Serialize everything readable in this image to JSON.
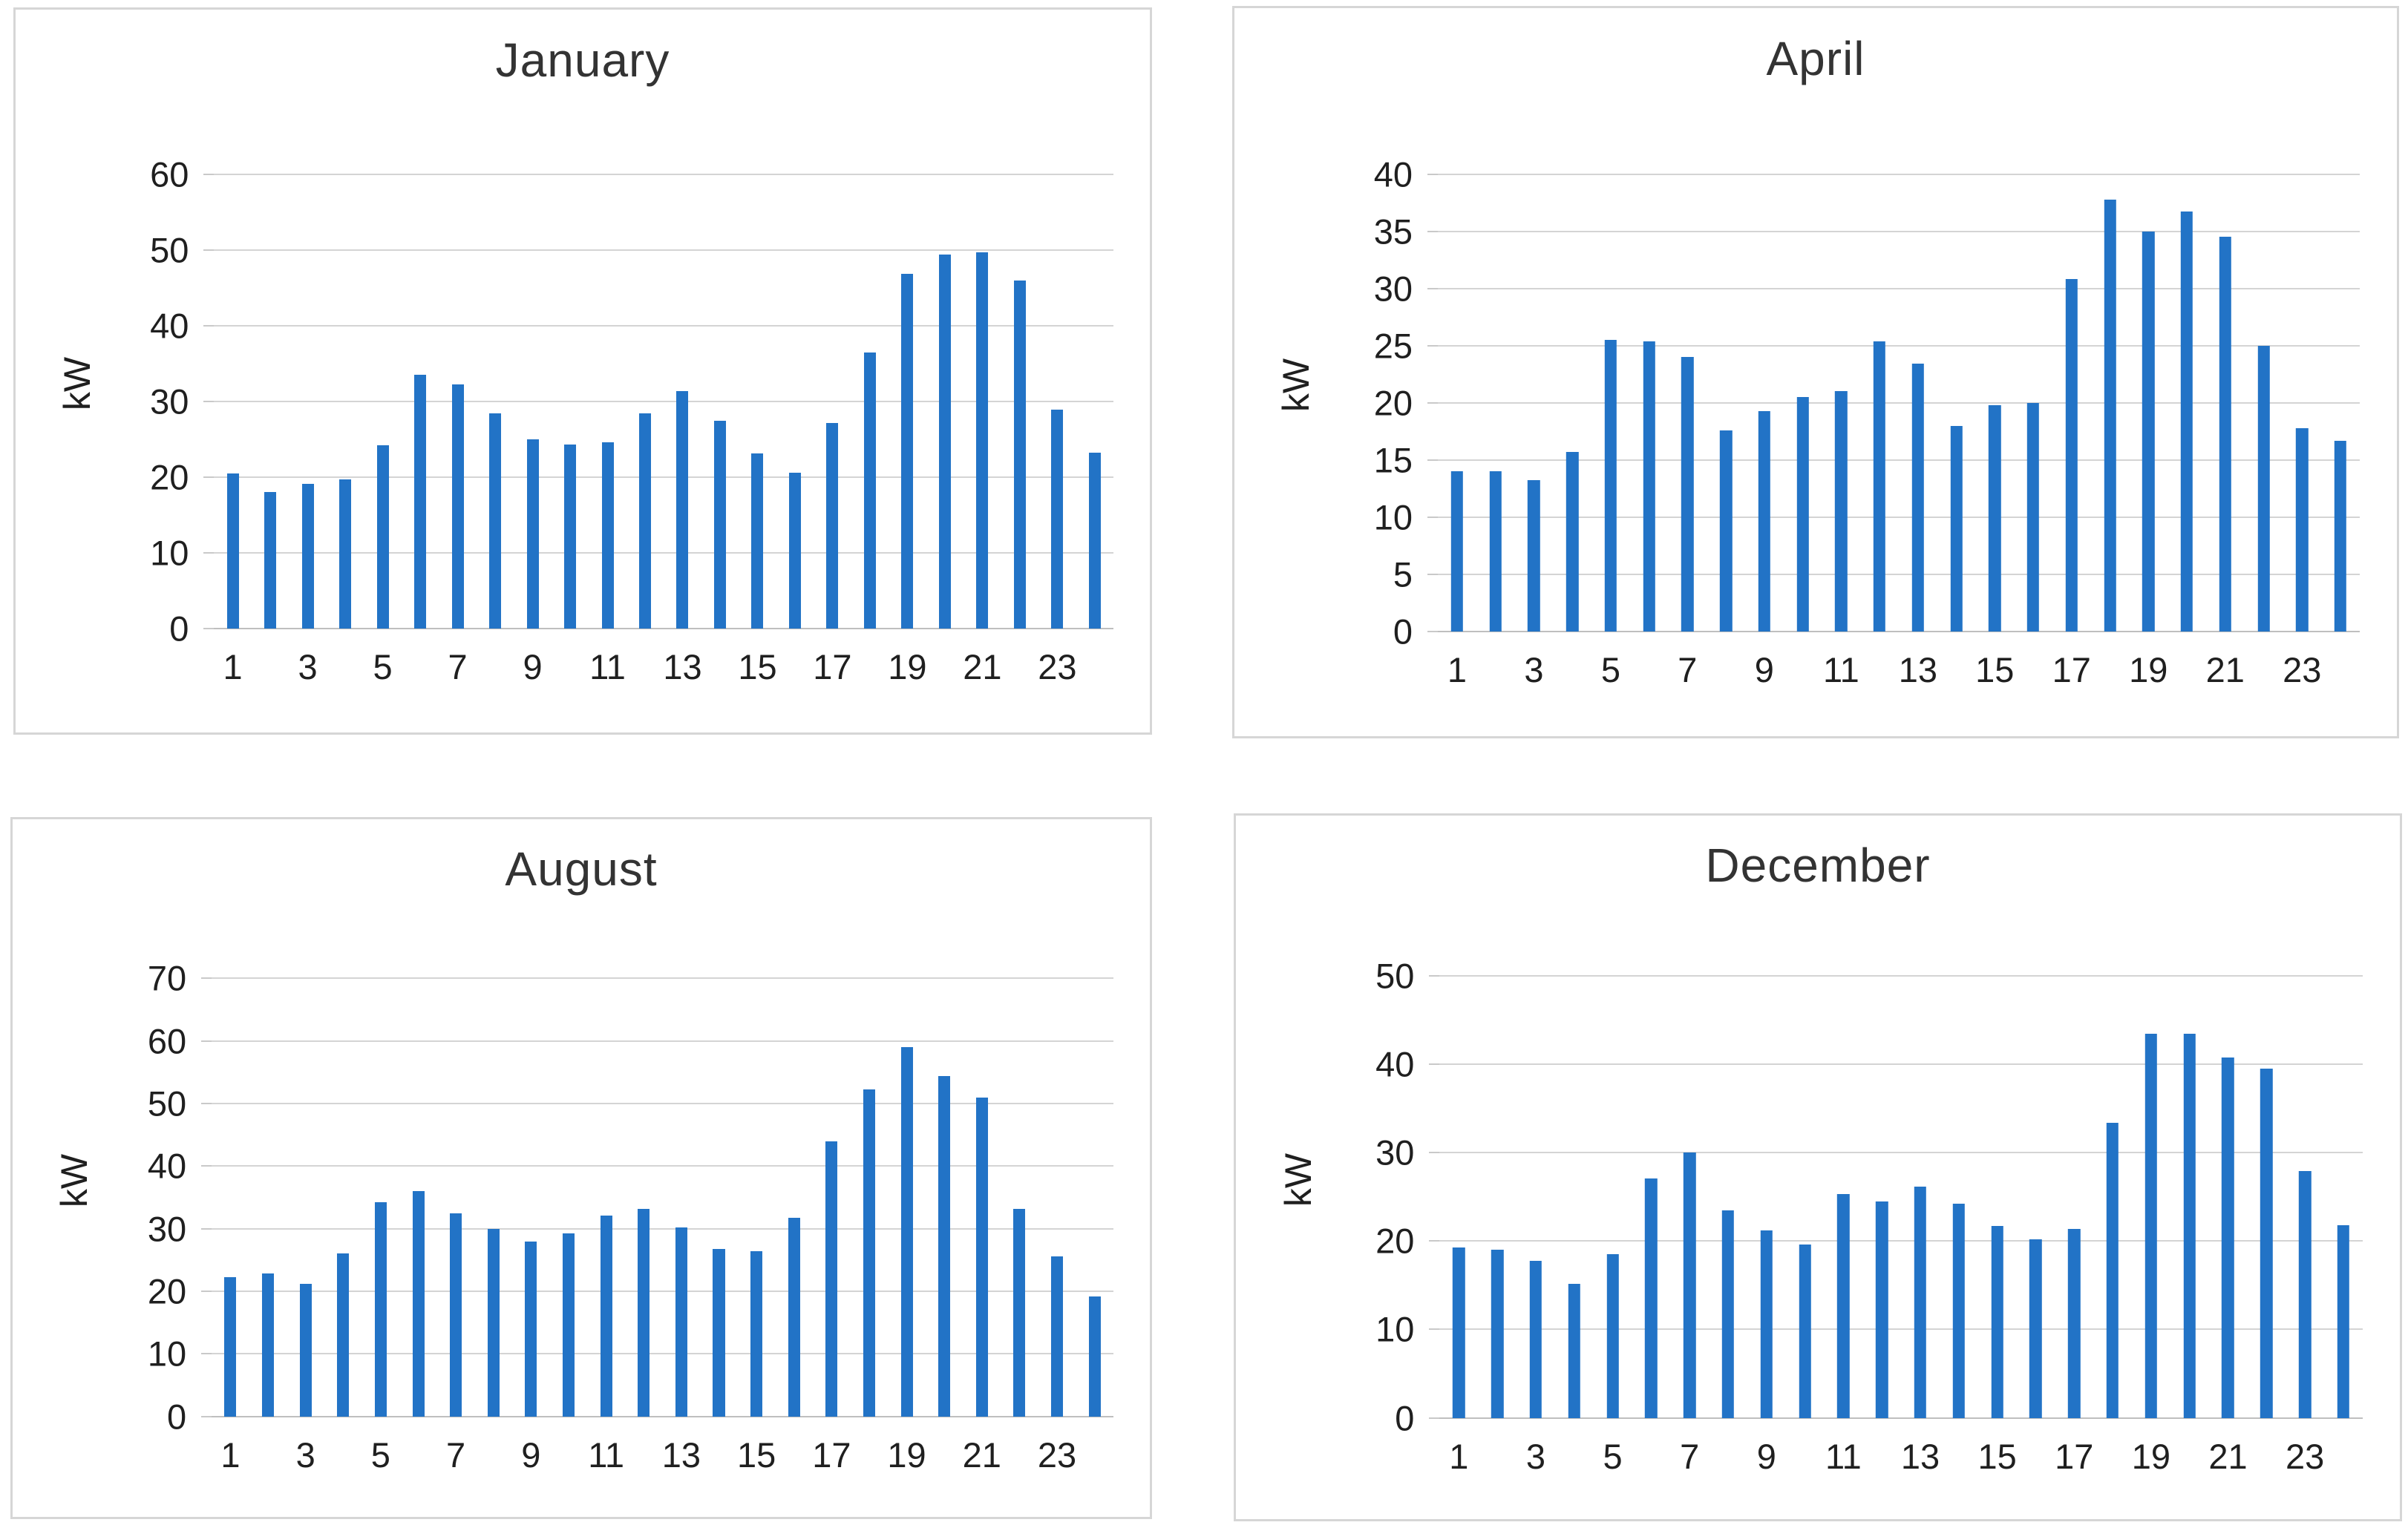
{
  "unit": "kW",
  "colors": {
    "bar": "#2273c6",
    "gridline": "#d4d4d4",
    "baseline": "#bfbfbf",
    "title_text": "#333333",
    "panel_border": "#d6d6d6"
  },
  "chart_data": [
    {
      "type": "bar",
      "title": "January",
      "ylabel": "kW",
      "xlabel": "",
      "ylim": [
        0,
        60
      ],
      "ystep": 10,
      "yticklabels": [
        "0",
        "10",
        "20",
        "30",
        "40",
        "50",
        "60"
      ],
      "grid": true,
      "categories": [
        1,
        2,
        3,
        4,
        5,
        6,
        7,
        8,
        9,
        10,
        11,
        12,
        13,
        14,
        15,
        16,
        17,
        18,
        19,
        20,
        21,
        22,
        23,
        24
      ],
      "xticklabels": [
        "1",
        "3",
        "5",
        "7",
        "9",
        "11",
        "13",
        "15",
        "17",
        "19",
        "21",
        "23"
      ],
      "values": [
        20.5,
        18,
        19.1,
        19.7,
        24.2,
        33.5,
        32.2,
        28.4,
        25,
        24.3,
        24.6,
        28.4,
        31.4,
        27.4,
        23.1,
        20.6,
        27.1,
        36.5,
        46.9,
        49.4,
        49.7,
        46,
        28.9,
        23.2
      ]
    },
    {
      "type": "bar",
      "title": "April",
      "ylabel": "kW",
      "xlabel": "",
      "ylim": [
        0,
        40
      ],
      "ystep": 5,
      "yticklabels": [
        "0",
        "5",
        "10",
        "15",
        "20",
        "25",
        "30",
        "35",
        "40"
      ],
      "grid": true,
      "categories": [
        1,
        2,
        3,
        4,
        5,
        6,
        7,
        8,
        9,
        10,
        11,
        12,
        13,
        14,
        15,
        16,
        17,
        18,
        19,
        20,
        21,
        22,
        23,
        24
      ],
      "xticklabels": [
        "1",
        "3",
        "5",
        "7",
        "9",
        "11",
        "13",
        "15",
        "17",
        "19",
        "21",
        "23"
      ],
      "values": [
        14,
        14,
        13.2,
        15.7,
        25.5,
        25.4,
        24,
        17.6,
        19.3,
        20.5,
        21,
        25.4,
        23.4,
        18,
        19.8,
        20,
        30.8,
        37.8,
        35,
        36.7,
        34.5,
        25,
        17.8,
        16.7
      ]
    },
    {
      "type": "bar",
      "title": "August",
      "ylabel": "kW",
      "xlabel": "",
      "ylim": [
        0,
        70
      ],
      "ystep": 10,
      "yticklabels": [
        "0",
        "10",
        "20",
        "30",
        "40",
        "50",
        "60",
        "70"
      ],
      "grid": true,
      "categories": [
        1,
        2,
        3,
        4,
        5,
        6,
        7,
        8,
        9,
        10,
        11,
        12,
        13,
        14,
        15,
        16,
        17,
        18,
        19,
        20,
        21,
        22,
        23,
        24
      ],
      "xticklabels": [
        "1",
        "3",
        "5",
        "7",
        "9",
        "11",
        "13",
        "15",
        "17",
        "19",
        "21",
        "23"
      ],
      "values": [
        22.3,
        22.8,
        21.2,
        26,
        34.2,
        36,
        32.4,
        30,
        27.9,
        29.3,
        32.1,
        33.2,
        30.2,
        26.7,
        26.4,
        31.7,
        43.9,
        52.3,
        59,
        54.4,
        51,
        33.2,
        25.6,
        19.2
      ]
    },
    {
      "type": "bar",
      "title": "December",
      "ylabel": "kW",
      "xlabel": "",
      "ylim": [
        0,
        50
      ],
      "ystep": 10,
      "yticklabels": [
        "0",
        "10",
        "20",
        "30",
        "40",
        "50"
      ],
      "grid": true,
      "categories": [
        1,
        2,
        3,
        4,
        5,
        6,
        7,
        8,
        9,
        10,
        11,
        12,
        13,
        14,
        15,
        16,
        17,
        18,
        19,
        20,
        21,
        22,
        23,
        24
      ],
      "xticklabels": [
        "1",
        "3",
        "5",
        "7",
        "9",
        "11",
        "13",
        "15",
        "17",
        "19",
        "21",
        "23"
      ],
      "values": [
        19.3,
        19,
        17.8,
        15.2,
        18.5,
        27.1,
        30,
        23.5,
        21.2,
        19.6,
        25.3,
        24.5,
        26.2,
        24.2,
        21.7,
        20.2,
        21.4,
        33.4,
        43.5,
        43.5,
        40.8,
        39.5,
        27.9,
        21.8
      ]
    }
  ]
}
